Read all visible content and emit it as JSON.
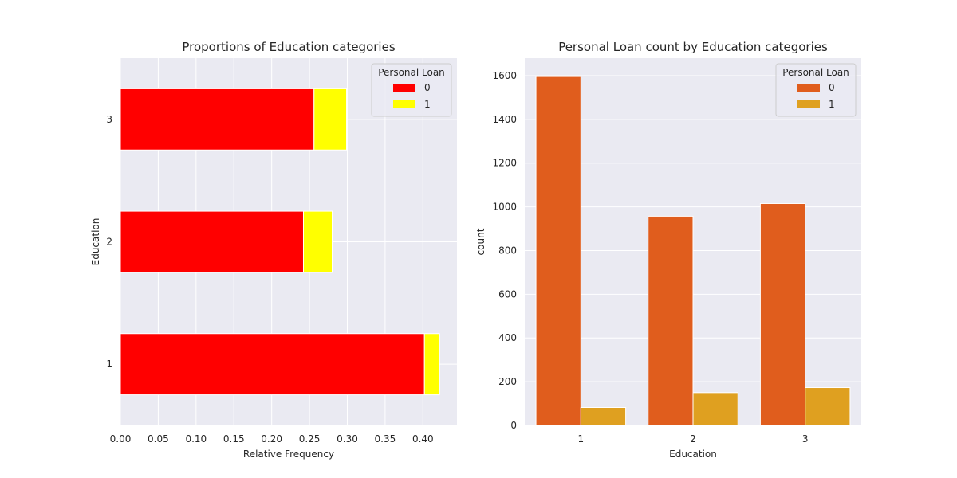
{
  "chart_data": [
    {
      "type": "bar",
      "orientation": "horizontal",
      "stacked": true,
      "title": "Proportions of Education categories",
      "xlabel": "Relative Frequency",
      "ylabel": "Education",
      "categories": [
        "1",
        "2",
        "3"
      ],
      "xlim": [
        0,
        0.445
      ],
      "xticks": [
        "0.00",
        "0.05",
        "0.10",
        "0.15",
        "0.20",
        "0.25",
        "0.30",
        "0.35",
        "0.40"
      ],
      "legend": {
        "title": "Personal Loan",
        "position": "top-right"
      },
      "series": [
        {
          "name": "0",
          "color": "#ff0000",
          "values": [
            0.402,
            0.242,
            0.256
          ]
        },
        {
          "name": "1",
          "color": "#ffff00",
          "values": [
            0.02,
            0.038,
            0.043
          ]
        }
      ],
      "grid": true
    },
    {
      "type": "bar",
      "orientation": "vertical",
      "title": "Personal Loan count by Education categories",
      "xlabel": "Education",
      "ylabel": "count",
      "categories": [
        "1",
        "2",
        "3"
      ],
      "ylim": [
        0,
        1680
      ],
      "yticks": [
        "0",
        "200",
        "400",
        "600",
        "800",
        "1000",
        "1200",
        "1400",
        "1600"
      ],
      "legend": {
        "title": "Personal Loan",
        "position": "top-right"
      },
      "series": [
        {
          "name": "0",
          "color": "#e05d1d",
          "values": [
            1596,
            957,
            1015
          ]
        },
        {
          "name": "1",
          "color": "#dfa020",
          "values": [
            82,
            150,
            173
          ]
        }
      ],
      "grid": true
    }
  ]
}
